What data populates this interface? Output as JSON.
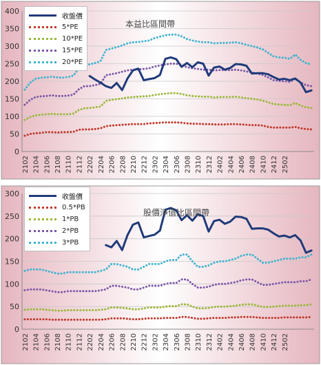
{
  "chart_data": [
    {
      "type": "line",
      "title": "本益比區間帶",
      "ylim": [
        0,
        400
      ],
      "yticks": [
        0,
        50,
        100,
        150,
        200,
        250,
        300,
        350,
        400
      ],
      "grid": true,
      "legend": "top-left",
      "colors": {
        "收盤價": "#1f3a7a",
        "5*PE": "#c0392b",
        "10*PE": "#9ab83a",
        "15*PE": "#7b57a8",
        "20*PE": "#3fb3cf"
      },
      "xtick_labels": [
        "2102",
        "2104",
        "2106",
        "2108",
        "2110",
        "2112",
        "2202",
        "2204",
        "2206",
        "2208",
        "2210",
        "2212",
        "2302",
        "2304",
        "2306",
        "2308",
        "2310",
        "2312",
        "2402",
        "2404",
        "2406",
        "2408",
        "2410",
        "2412",
        "2502"
      ],
      "series": [
        {
          "name": "收盤價",
          "style": "solid",
          "values": [
            null,
            null,
            null,
            null,
            null,
            null,
            null,
            null,
            null,
            null,
            null,
            null,
            215,
            205,
            196,
            186,
            181,
            195,
            175,
            208,
            231,
            236,
            203,
            206,
            209,
            218,
            264,
            268,
            263,
            241,
            252,
            240,
            254,
            250,
            216,
            239,
            242,
            233,
            238,
            249,
            248,
            244,
            222,
            223,
            223,
            220,
            212,
            205,
            207,
            203,
            208,
            196,
            169,
            174
          ]
        },
        {
          "name": "5*PE",
          "style": "dotted",
          "values": [
            45,
            50,
            52,
            53,
            55,
            55,
            54,
            55,
            55,
            56,
            62,
            63,
            63,
            64,
            66,
            72,
            74,
            75,
            76,
            77,
            78,
            78,
            78,
            80,
            81,
            82,
            83,
            83,
            83,
            82,
            80,
            79,
            79,
            78,
            78,
            77,
            77,
            77,
            78,
            78,
            77,
            76,
            75,
            75,
            74,
            70,
            68,
            68,
            68,
            68,
            70,
            66,
            64,
            63
          ]
        },
        {
          "name": "10*PE",
          "style": "dotted",
          "values": [
            90,
            98,
            103,
            105,
            106,
            107,
            106,
            106,
            106,
            108,
            118,
            123,
            124,
            126,
            128,
            144,
            147,
            149,
            151,
            154,
            155,
            156,
            157,
            158,
            161,
            163,
            165,
            166,
            166,
            164,
            160,
            158,
            157,
            156,
            156,
            154,
            155,
            155,
            155,
            156,
            154,
            152,
            150,
            148,
            145,
            140,
            135,
            134,
            133,
            132,
            138,
            131,
            126,
            124
          ]
        },
        {
          "name": "15*PE",
          "style": "dotted",
          "values": [
            133,
            147,
            155,
            157,
            158,
            160,
            158,
            158,
            159,
            162,
            177,
            186,
            186,
            189,
            193,
            217,
            220,
            223,
            227,
            231,
            233,
            234,
            235,
            237,
            242,
            245,
            248,
            250,
            250,
            246,
            240,
            237,
            235,
            233,
            233,
            231,
            232,
            232,
            232,
            233,
            231,
            228,
            225,
            222,
            218,
            211,
            203,
            201,
            200,
            198,
            207,
            196,
            189,
            186
          ]
        },
        {
          "name": "20*PE",
          "style": "dotted",
          "values": [
            176,
            196,
            207,
            210,
            211,
            213,
            211,
            210,
            212,
            216,
            236,
            248,
            248,
            252,
            257,
            289,
            293,
            297,
            302,
            308,
            311,
            312,
            314,
            316,
            323,
            327,
            331,
            333,
            333,
            328,
            320,
            316,
            313,
            311,
            311,
            308,
            309,
            309,
            310,
            311,
            308,
            304,
            300,
            296,
            291,
            281,
            271,
            268,
            267,
            264,
            276,
            261,
            252,
            248
          ]
        }
      ]
    },
    {
      "type": "line",
      "title": "股價淨值比區間帶",
      "ylim": [
        0,
        300
      ],
      "yticks": [
        0,
        50,
        100,
        150,
        200,
        250,
        300
      ],
      "grid": true,
      "legend": "top-left",
      "colors": {
        "收盤價": "#1f3a7a",
        "0.5*PB": "#c0392b",
        "1*PB": "#9ab83a",
        "2*PB": "#7b57a8",
        "3*PB": "#3fb3cf"
      },
      "xtick_labels": [
        "2102",
        "2104",
        "2106",
        "2108",
        "2110",
        "2112",
        "2202",
        "2204",
        "2206",
        "2208",
        "2210",
        "2212",
        "2302",
        "2304",
        "2306",
        "2308",
        "2310",
        "2312",
        "2402",
        "2404",
        "2406",
        "2408",
        "2410",
        "2412",
        "2502"
      ],
      "series": [
        {
          "name": "收盤價",
          "style": "solid",
          "values": [
            null,
            null,
            null,
            null,
            null,
            null,
            null,
            null,
            null,
            null,
            null,
            null,
            null,
            null,
            null,
            186,
            181,
            195,
            175,
            208,
            231,
            236,
            203,
            206,
            209,
            218,
            264,
            268,
            263,
            241,
            252,
            240,
            254,
            250,
            216,
            239,
            242,
            233,
            238,
            249,
            248,
            244,
            222,
            223,
            223,
            220,
            212,
            205,
            207,
            203,
            208,
            196,
            169,
            174
          ]
        },
        {
          "name": "0.5*PB",
          "style": "dotted",
          "values": [
            22,
            22,
            22,
            22,
            22,
            21,
            21,
            21,
            21,
            21,
            21,
            21,
            21,
            21,
            21,
            22,
            24,
            24,
            24,
            23,
            22,
            22,
            23,
            24,
            24,
            24,
            25,
            25,
            25,
            27,
            27,
            25,
            23,
            23,
            24,
            25,
            25,
            25,
            26,
            26,
            27,
            27,
            27,
            26,
            25,
            25,
            25,
            25,
            26,
            26,
            26,
            26,
            26,
            27
          ]
        },
        {
          "name": "1*PB",
          "style": "dotted",
          "values": [
            43,
            44,
            44,
            44,
            43,
            42,
            41,
            41,
            42,
            42,
            42,
            42,
            42,
            42,
            43,
            44,
            48,
            48,
            47,
            46,
            44,
            44,
            46,
            48,
            48,
            48,
            50,
            51,
            51,
            55,
            55,
            50,
            46,
            46,
            47,
            49,
            50,
            50,
            51,
            52,
            54,
            55,
            55,
            52,
            49,
            49,
            50,
            51,
            52,
            52,
            52,
            53,
            53,
            55
          ]
        },
        {
          "name": "2*PB",
          "style": "dotted",
          "values": [
            86,
            88,
            88,
            88,
            86,
            84,
            82,
            82,
            84,
            84,
            84,
            84,
            84,
            84,
            86,
            88,
            96,
            96,
            94,
            92,
            88,
            88,
            92,
            96,
            96,
            96,
            100,
            102,
            102,
            110,
            110,
            100,
            92,
            92,
            94,
            98,
            100,
            100,
            102,
            104,
            108,
            110,
            110,
            104,
            98,
            98,
            100,
            102,
            104,
            104,
            104,
            106,
            106,
            110
          ]
        },
        {
          "name": "3*PB",
          "style": "dotted",
          "values": [
            129,
            132,
            132,
            132,
            129,
            126,
            123,
            123,
            126,
            126,
            126,
            126,
            126,
            126,
            129,
            132,
            144,
            144,
            141,
            138,
            132,
            132,
            138,
            144,
            144,
            144,
            150,
            153,
            153,
            165,
            165,
            150,
            138,
            138,
            141,
            147,
            150,
            150,
            153,
            156,
            162,
            165,
            165,
            156,
            147,
            147,
            150,
            153,
            156,
            156,
            156,
            159,
            159,
            165
          ]
        }
      ]
    }
  ]
}
